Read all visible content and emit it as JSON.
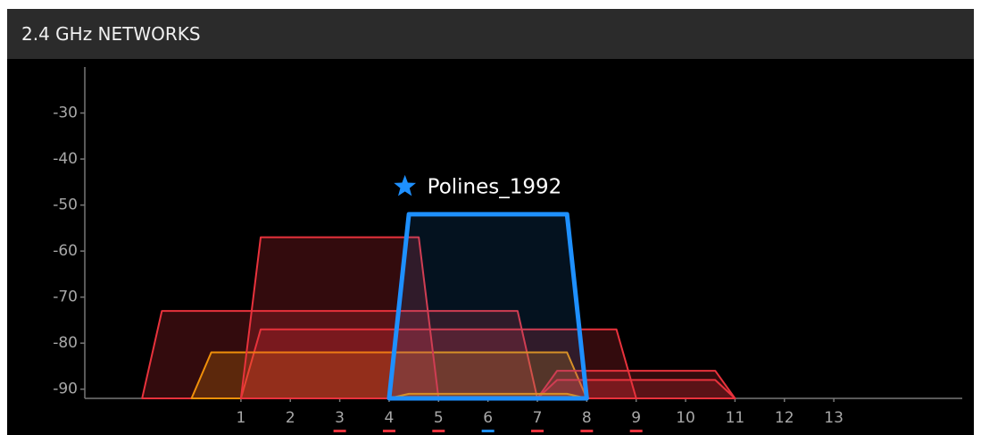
{
  "header": {
    "title": "2.4 GHz NETWORKS"
  },
  "chart_data": {
    "type": "channel-graph",
    "xlim": [
      -2.16,
      15.6
    ],
    "ylim": [
      -92,
      -20
    ],
    "xticks": [
      1,
      2,
      3,
      4,
      5,
      6,
      7,
      8,
      9,
      10,
      11,
      12,
      13
    ],
    "yticks": [
      -30,
      -40,
      -50,
      -60,
      -70,
      -80,
      -90
    ],
    "series": [
      {
        "color": "#e8323c",
        "channel": 3,
        "width": 8,
        "signal": -73
      },
      {
        "color": "#e8323c",
        "channel": 5,
        "width": 8,
        "signal": -77
      },
      {
        "color": "#f0900a",
        "channel": 4,
        "width": 8,
        "signal": -82
      },
      {
        "color": "#e8323c",
        "channel": 3,
        "width": 4,
        "signal": -57
      },
      {
        "color": "#e8323c",
        "channel": 9,
        "width": 4,
        "signal": -86
      },
      {
        "color": "#e8323c",
        "channel": 9,
        "width": 4,
        "signal": -88
      },
      {
        "color": "#f0900a",
        "channel": 6,
        "width": 4,
        "signal": -91
      },
      {
        "name": "Polines_1992",
        "color": "#1e90ff",
        "channel": 6,
        "width": 4,
        "signal": -52,
        "highlight": true
      }
    ],
    "channel_markers": [
      {
        "channel": 3,
        "color": "#e8323c"
      },
      {
        "channel": 4,
        "color": "#e8323c"
      },
      {
        "channel": 5,
        "color": "#e8323c"
      },
      {
        "channel": 6,
        "color": "#1e90ff"
      },
      {
        "channel": 7,
        "color": "#e8323c"
      },
      {
        "channel": 8,
        "color": "#e8323c"
      },
      {
        "channel": 9,
        "color": "#e8323c"
      }
    ]
  }
}
